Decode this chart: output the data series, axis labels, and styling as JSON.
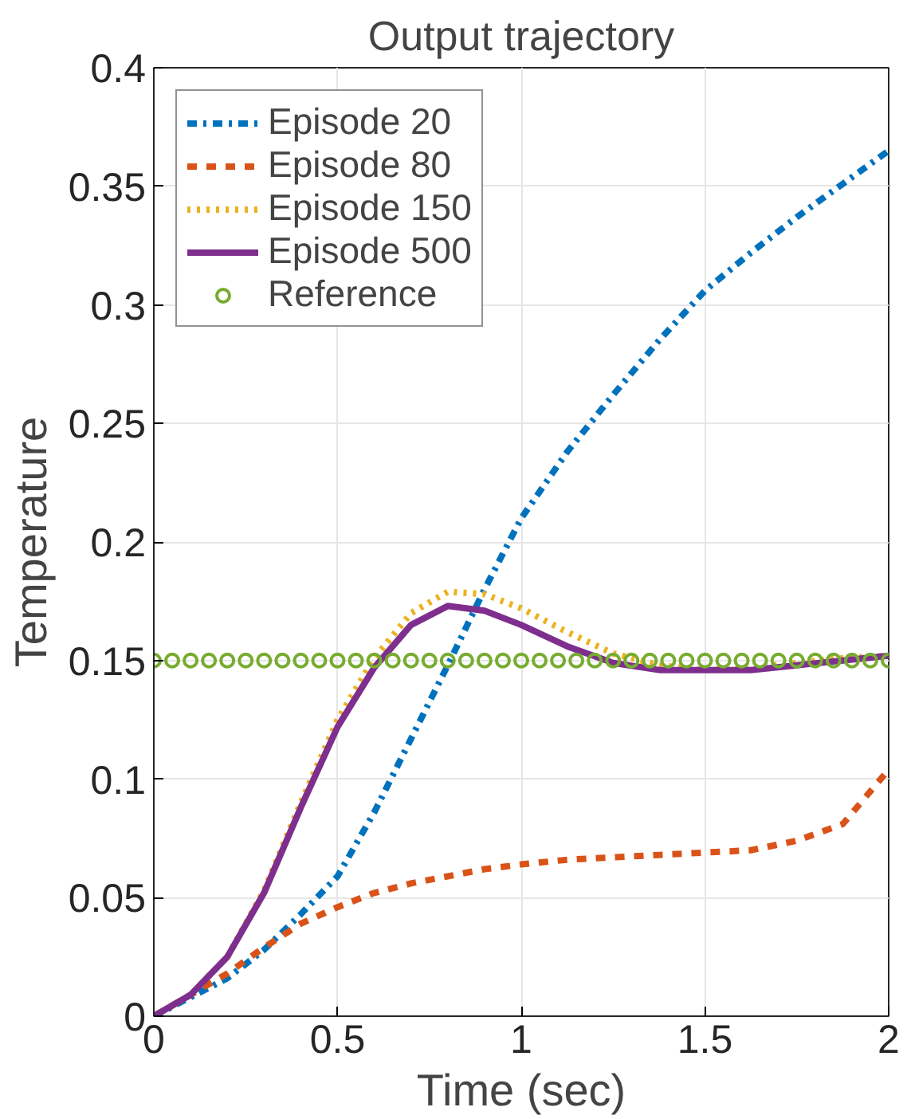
{
  "chart_data": {
    "type": "line",
    "title": "Output trajectory",
    "xlabel": "Time (sec)",
    "ylabel": "Temperature",
    "x": [
      0,
      0.1,
      0.2,
      0.3,
      0.4,
      0.5,
      0.6,
      0.7,
      0.8,
      0.9,
      1.0,
      1.125,
      1.25,
      1.375,
      1.5,
      1.625,
      1.75,
      1.875,
      2.0
    ],
    "series": [
      {
        "name": "Episode 20",
        "color": "#0072bd",
        "line_style": "dashdot",
        "values": [
          0,
          0.008,
          0.016,
          0.028,
          0.043,
          0.059,
          0.086,
          0.117,
          0.148,
          0.18,
          0.21,
          0.238,
          0.262,
          0.285,
          0.306,
          0.322,
          0.337,
          0.351,
          0.365
        ]
      },
      {
        "name": "Episode 80",
        "color": "#d95319",
        "line_style": "dashed",
        "values": [
          0,
          0.009,
          0.018,
          0.029,
          0.039,
          0.046,
          0.052,
          0.056,
          0.059,
          0.062,
          0.064,
          0.066,
          0.067,
          0.068,
          0.069,
          0.07,
          0.074,
          0.081,
          0.104
        ]
      },
      {
        "name": "Episode 150",
        "color": "#edb120",
        "line_style": "dotted",
        "values": [
          0,
          0.009,
          0.025,
          0.053,
          0.09,
          0.125,
          0.151,
          0.17,
          0.179,
          0.178,
          0.172,
          0.162,
          0.153,
          0.148,
          0.146,
          0.147,
          0.149,
          0.151,
          0.152
        ]
      },
      {
        "name": "Episode 500",
        "color": "#7e2f8e",
        "line_style": "solid",
        "values": [
          0,
          0.009,
          0.025,
          0.052,
          0.088,
          0.122,
          0.147,
          0.165,
          0.173,
          0.171,
          0.165,
          0.156,
          0.149,
          0.146,
          0.146,
          0.146,
          0.148,
          0.15,
          0.152
        ]
      },
      {
        "name": "Reference",
        "color": "#77ac30",
        "type": "scatter",
        "marker": "circle",
        "x": [
          0,
          0.05,
          0.1,
          0.15,
          0.2,
          0.25,
          0.3,
          0.35,
          0.4,
          0.45,
          0.5,
          0.55,
          0.6,
          0.65,
          0.7,
          0.75,
          0.8,
          0.85,
          0.9,
          0.95,
          1.0,
          1.05,
          1.1,
          1.15,
          1.2,
          1.25,
          1.3,
          1.35,
          1.4,
          1.45,
          1.5,
          1.55,
          1.6,
          1.65,
          1.7,
          1.75,
          1.8,
          1.85,
          1.9,
          1.95,
          2.0
        ],
        "values": [
          0.15,
          0.15,
          0.15,
          0.15,
          0.15,
          0.15,
          0.15,
          0.15,
          0.15,
          0.15,
          0.15,
          0.15,
          0.15,
          0.15,
          0.15,
          0.15,
          0.15,
          0.15,
          0.15,
          0.15,
          0.15,
          0.15,
          0.15,
          0.15,
          0.15,
          0.15,
          0.15,
          0.15,
          0.15,
          0.15,
          0.15,
          0.15,
          0.15,
          0.15,
          0.15,
          0.15,
          0.15,
          0.15,
          0.15,
          0.15,
          0.15
        ]
      }
    ],
    "xlim": [
      0,
      2
    ],
    "xticks": [
      0,
      0.5,
      1,
      1.5,
      2
    ],
    "ylim": [
      0,
      0.4
    ],
    "yticks": [
      0,
      0.05,
      0.1,
      0.15,
      0.2,
      0.25,
      0.3,
      0.35,
      0.4
    ],
    "grid": true,
    "legend": "top left"
  }
}
